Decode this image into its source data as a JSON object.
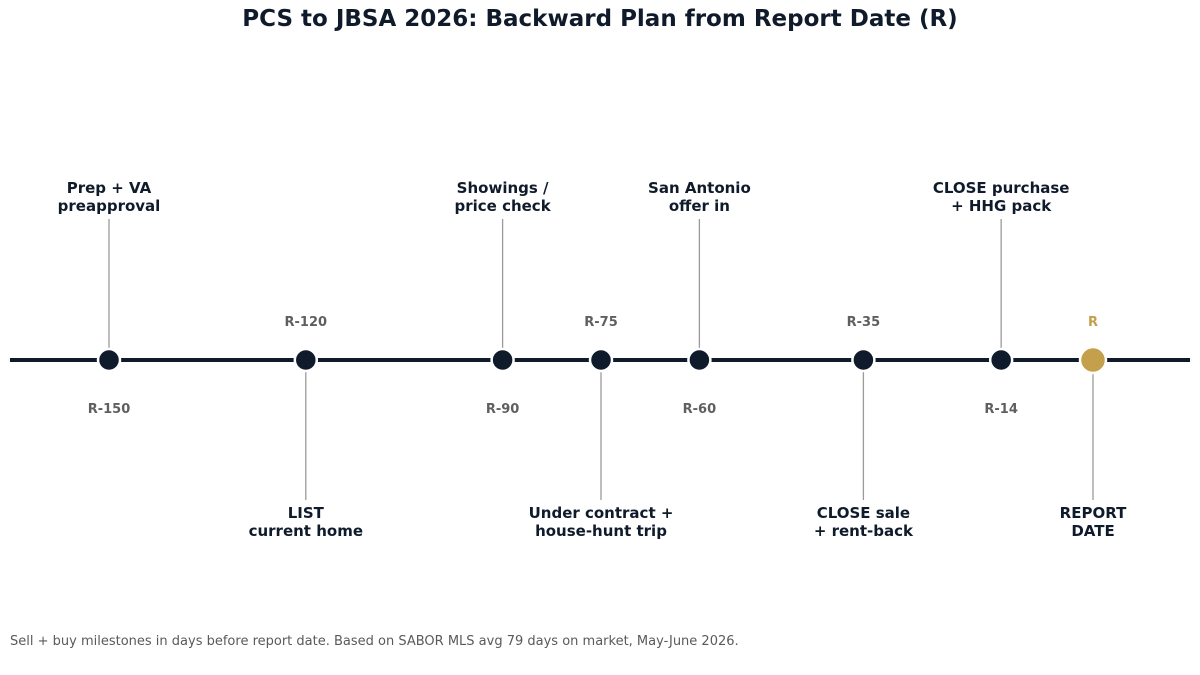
{
  "title": "PCS to JBSA 2026: Backward Plan from Report Date (R)",
  "footnote": "Sell + buy milestones in days before report date. Based on SABOR MLS avg 79 days on market, May-June 2026.",
  "colors": {
    "axis": "#0f1a2b",
    "marker": "#0f1a2b",
    "report_marker": "#c4a04c",
    "day_label": "#5f5f5f",
    "report_day_label": "#c4a04c",
    "leader": "#9a9a9a",
    "event_text": "#0f1a2b"
  },
  "milestones": [
    {
      "day": -150,
      "day_label": "R-150",
      "side": "above",
      "lines": [
        "Prep + VA",
        "preapproval"
      ],
      "is_report": false
    },
    {
      "day": -120,
      "day_label": "R-120",
      "side": "below",
      "lines": [
        "LIST",
        "current home"
      ],
      "is_report": false
    },
    {
      "day": -90,
      "day_label": "R-90",
      "side": "above",
      "lines": [
        "Showings /",
        "price check"
      ],
      "is_report": false
    },
    {
      "day": -75,
      "day_label": "R-75",
      "side": "below",
      "lines": [
        "Under contract +",
        "house-hunt trip"
      ],
      "is_report": false
    },
    {
      "day": -60,
      "day_label": "R-60",
      "side": "above",
      "lines": [
        "San Antonio",
        "offer in"
      ],
      "is_report": false
    },
    {
      "day": -35,
      "day_label": "R-35",
      "side": "below",
      "lines": [
        "CLOSE sale",
        "+ rent-back"
      ],
      "is_report": false
    },
    {
      "day": -14,
      "day_label": "R-14",
      "side": "above",
      "lines": [
        "CLOSE purchase",
        "+ HHG pack"
      ],
      "is_report": false
    },
    {
      "day": 0,
      "day_label": "R",
      "side": "below",
      "lines": [
        "REPORT",
        "DATE"
      ],
      "is_report": true
    }
  ]
}
